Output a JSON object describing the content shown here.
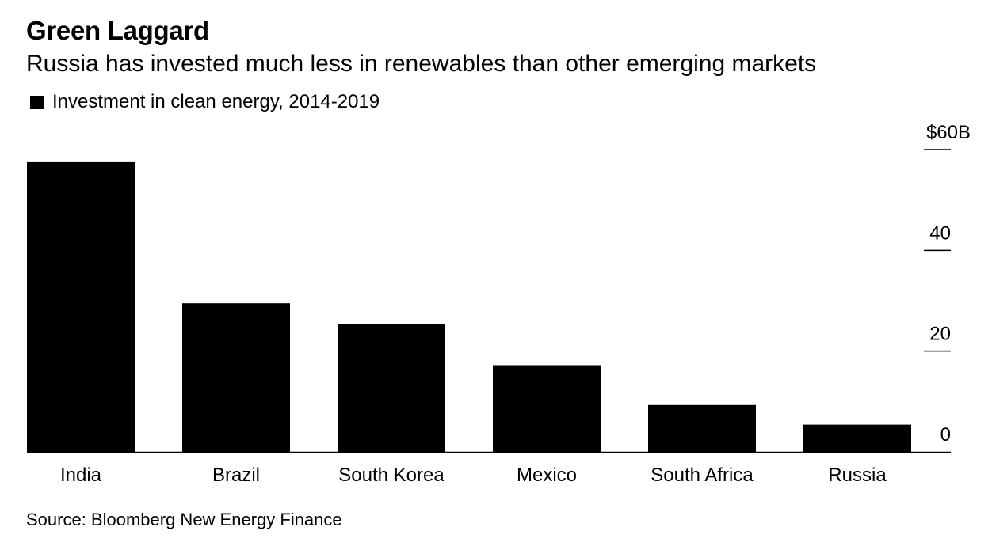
{
  "header": {
    "title": "Green Laggard",
    "subtitle": "Russia has invested much less in renewables than other emerging markets"
  },
  "legend": {
    "label": "Investment in clean energy, 2014-2019"
  },
  "footer": {
    "source": "Source: Bloomberg New Energy Finance"
  },
  "colors": {
    "bar": "#000000",
    "background": "#ffffff"
  },
  "chart_data": {
    "type": "bar",
    "title": "Green Laggard",
    "subtitle": "Russia has invested much less in renewables than other emerging markets",
    "xlabel": "",
    "ylabel": "",
    "categories": [
      "India",
      "Brazil",
      "South Korea",
      "Mexico",
      "South Africa",
      "Russia"
    ],
    "series": [
      {
        "name": "Investment in clean energy, 2014-2019",
        "values": [
          57.5,
          29.5,
          25.3,
          17.2,
          9.3,
          5.4
        ]
      }
    ],
    "ylim": [
      0,
      60
    ],
    "yticks": [
      0,
      20,
      40,
      60
    ],
    "ytick_labels": [
      "0",
      "20",
      "40",
      "$60B"
    ],
    "y_axis_side": "right",
    "grid": false,
    "legend_position": "top-left"
  }
}
